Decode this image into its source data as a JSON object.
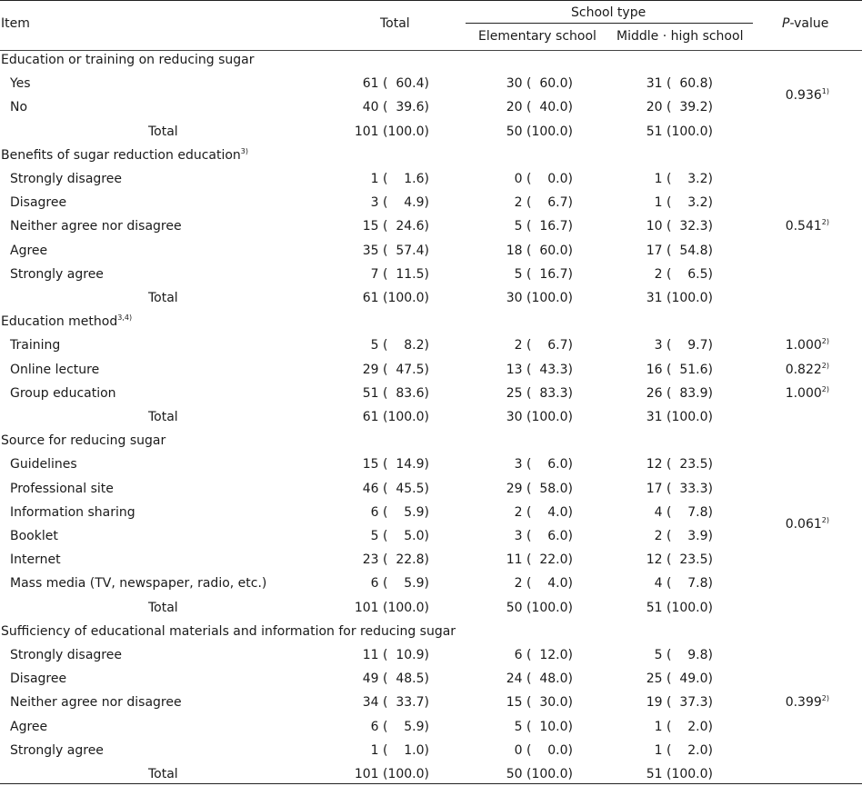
{
  "header": {
    "item": "Item",
    "total": "Total",
    "school_type": "School type",
    "elementary": "Elementary school",
    "middle_high": "Middle · high school",
    "pvalue_italic": "P",
    "pvalue_rest": "-value"
  },
  "rows": [
    {
      "kind": "section",
      "label": "Education or training on reducing sugar"
    },
    {
      "kind": "data",
      "label": "Yes",
      "total": "61 (  60.4)",
      "elem": "30 (  60.0)",
      "mid": "31 (  60.8)"
    },
    {
      "kind": "data",
      "label": "No",
      "total": "40 (  39.6)",
      "elem": "20 (  40.0)",
      "mid": "20 (  39.2)"
    },
    {
      "kind": "total",
      "label": "Total",
      "total": "101 (100.0)",
      "elem": "50 (100.0)",
      "mid": "51 (100.0)"
    },
    {
      "kind": "section",
      "label": "Benefits of sugar reduction education",
      "sup": "3)"
    },
    {
      "kind": "data",
      "label": "Strongly disagree",
      "total": "1 (    1.6)",
      "elem": "0 (    0.0)",
      "mid": "1 (    3.2)"
    },
    {
      "kind": "data",
      "label": "Disagree",
      "total": "3 (    4.9)",
      "elem": "2 (    6.7)",
      "mid": "1 (    3.2)"
    },
    {
      "kind": "data",
      "label": "Neither agree nor disagree",
      "total": "15 (  24.6)",
      "elem": "5 (  16.7)",
      "mid": "10 (  32.3)"
    },
    {
      "kind": "data",
      "label": "Agree",
      "total": "35 (  57.4)",
      "elem": "18 (  60.0)",
      "mid": "17 (  54.8)"
    },
    {
      "kind": "data",
      "label": "Strongly agree",
      "total": "7 (  11.5)",
      "elem": "5 (  16.7)",
      "mid": "2 (    6.5)"
    },
    {
      "kind": "total",
      "label": "Total",
      "total": "61 (100.0)",
      "elem": "30 (100.0)",
      "mid": "31 (100.0)"
    },
    {
      "kind": "section",
      "label": "Education method",
      "sup": "3,4)"
    },
    {
      "kind": "data",
      "label": "Training",
      "total": "5 (    8.2)",
      "elem": "2 (    6.7)",
      "mid": "3 (    9.7)",
      "p": "1.000",
      "psup": "2)"
    },
    {
      "kind": "data",
      "label": "Online lecture",
      "total": "29 (  47.5)",
      "elem": "13 (  43.3)",
      "mid": "16 (  51.6)",
      "p": "0.822",
      "psup": "2)"
    },
    {
      "kind": "data",
      "label": "Group education",
      "total": "51 (  83.6)",
      "elem": "25 (  83.3)",
      "mid": "26 (  83.9)",
      "p": "1.000",
      "psup": "2)"
    },
    {
      "kind": "total",
      "label": "Total",
      "total": "61 (100.0)",
      "elem": "30 (100.0)",
      "mid": "31 (100.0)"
    },
    {
      "kind": "section",
      "label": "Source for reducing sugar"
    },
    {
      "kind": "data",
      "label": "Guidelines",
      "total": "15 (  14.9)",
      "elem": "3 (    6.0)",
      "mid": "12 (  23.5)"
    },
    {
      "kind": "data",
      "label": "Professional site",
      "total": "46 (  45.5)",
      "elem": "29 (  58.0)",
      "mid": "17 (  33.3)"
    },
    {
      "kind": "data",
      "label": "Information sharing",
      "total": "6 (    5.9)",
      "elem": "2 (    4.0)",
      "mid": "4 (    7.8)"
    },
    {
      "kind": "data",
      "label": "Booklet",
      "total": "5 (    5.0)",
      "elem": "3 (    6.0)",
      "mid": "2 (    3.9)"
    },
    {
      "kind": "data",
      "label": "Internet",
      "total": "23 (  22.8)",
      "elem": "11 (  22.0)",
      "mid": "12 (  23.5)"
    },
    {
      "kind": "data",
      "label": "Mass media (TV, newspaper, radio, etc.)",
      "total": "6 (    5.9)",
      "elem": "2 (    4.0)",
      "mid": "4 (    7.8)"
    },
    {
      "kind": "total",
      "label": "Total",
      "total": "101 (100.0)",
      "elem": "50 (100.0)",
      "mid": "51 (100.0)"
    },
    {
      "kind": "section",
      "label": "Sufficiency of educational materials and information for reducing sugar"
    },
    {
      "kind": "data",
      "label": "Strongly disagree",
      "total": "11 (  10.9)",
      "elem": "6 (  12.0)",
      "mid": "5 (    9.8)"
    },
    {
      "kind": "data",
      "label": "Disagree",
      "total": "49 (  48.5)",
      "elem": "24 (  48.0)",
      "mid": "25 (  49.0)"
    },
    {
      "kind": "data",
      "label": "Neither agree nor disagree",
      "total": "34 (  33.7)",
      "elem": "15 (  30.0)",
      "mid": "19 (  37.3)"
    },
    {
      "kind": "data",
      "label": "Agree",
      "total": "6 (    5.9)",
      "elem": "5 (  10.0)",
      "mid": "1 (    2.0)"
    },
    {
      "kind": "data",
      "label": "Strongly agree",
      "total": "1 (    1.0)",
      "elem": "0 (    0.0)",
      "mid": "1 (    2.0)"
    },
    {
      "kind": "total",
      "label": "Total",
      "total": "101 (100.0)",
      "elem": "50 (100.0)",
      "mid": "51 (100.0)"
    }
  ],
  "group_pvalues": [
    {
      "p": "0.936",
      "sup": "1)"
    },
    {
      "p": "0.541",
      "sup": "2)"
    },
    {
      "p": "0.061",
      "sup": "2)"
    },
    {
      "p": "0.399",
      "sup": "2)"
    }
  ]
}
